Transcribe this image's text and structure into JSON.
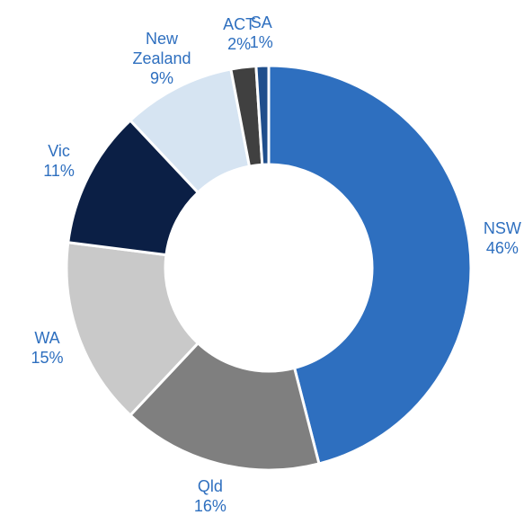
{
  "chart_data": {
    "type": "donut",
    "categories": [
      "NSW",
      "Qld",
      "WA",
      "Vic",
      "New Zealand",
      "ACT",
      "SA"
    ],
    "values": [
      46,
      16,
      15,
      11,
      9,
      2,
      1
    ],
    "value_labels": [
      "46%",
      "16%",
      "15%",
      "11%",
      "9%",
      "2%",
      "1%"
    ],
    "colors": [
      "#2e6fbf",
      "#7f7f7f",
      "#c9c9c9",
      "#0b1f45",
      "#d6e4f2",
      "#404040",
      "#1f4e8c"
    ]
  }
}
